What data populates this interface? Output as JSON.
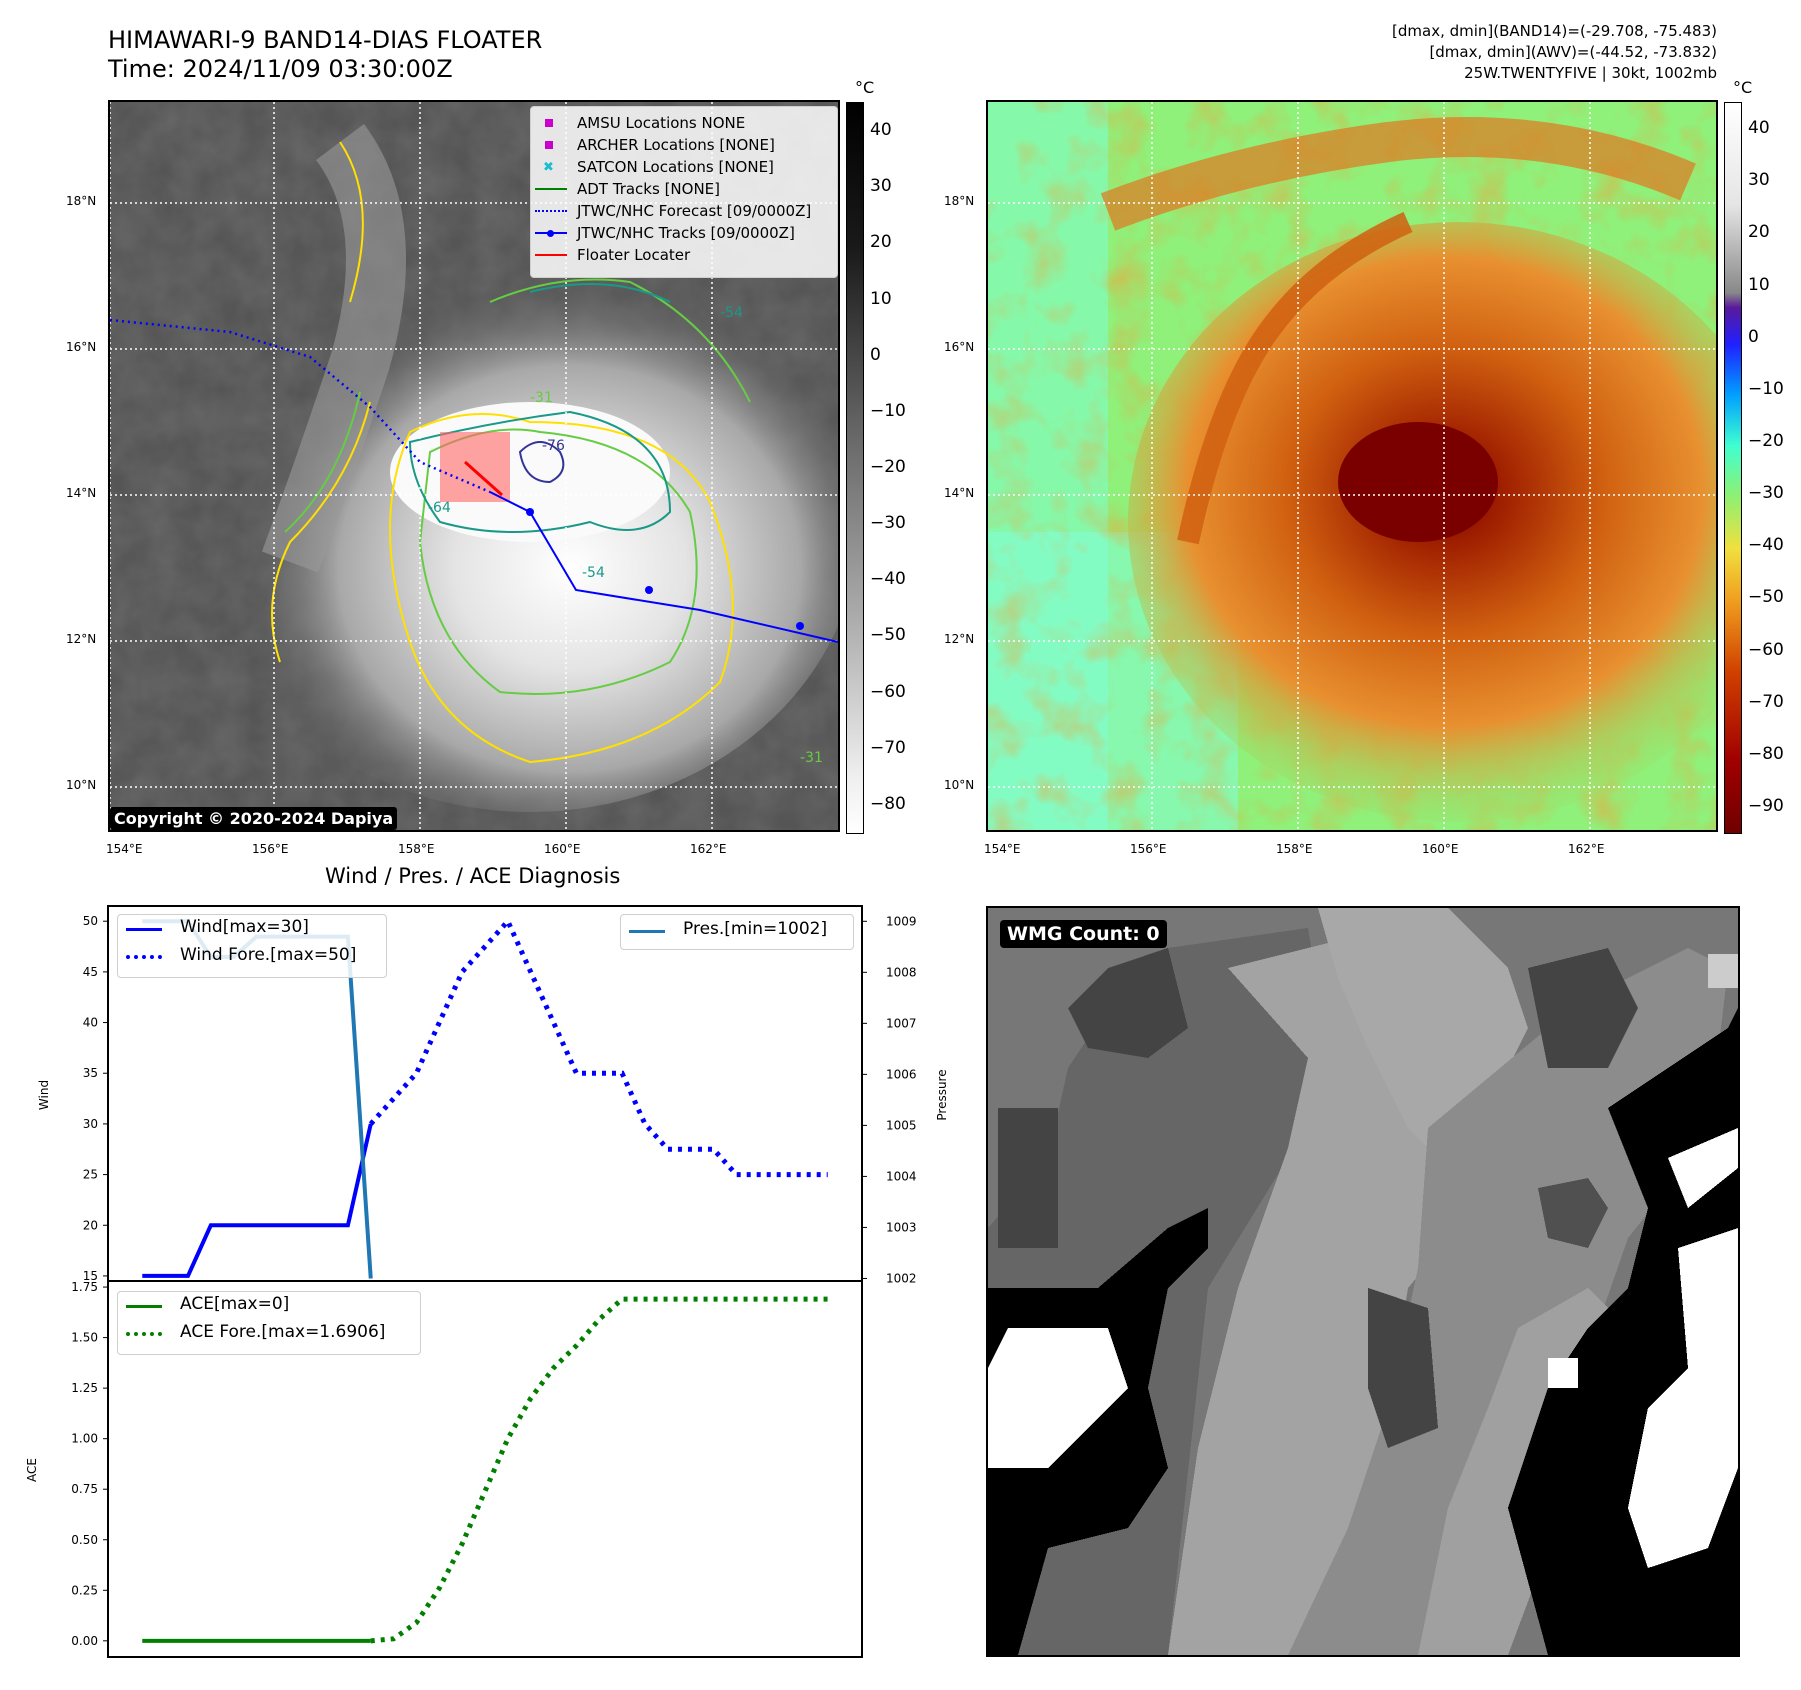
{
  "header": {
    "title_line1": "HIMAWARI-9 BAND14-DIAS FLOATER",
    "title_line2": "Time: 2024/11/09 03:30:00Z",
    "meta_line1": "[dmax, dmin](BAND14)=(-29.708, -75.483)",
    "meta_line2": "[dmax, dmin](AWV)=(-44.52, -73.832)",
    "meta_line3": "25W.TWENTYFIVE | 30kt, 1002mb"
  },
  "map_axes": {
    "lat_ticks": [
      "18°N",
      "16°N",
      "14°N",
      "12°N",
      "10°N"
    ],
    "lon_ticks": [
      "154°E",
      "156°E",
      "158°E",
      "160°E",
      "162°E"
    ]
  },
  "ir_panel": {
    "copyright": "Copyright © 2020-2024 Dapiya",
    "colorbar_unit": "°C",
    "colorbar_ticks": [
      "40",
      "30",
      "20",
      "10",
      "0",
      "−10",
      "−20",
      "−30",
      "−40",
      "−50",
      "−60",
      "−70",
      "−80"
    ],
    "contour_labels": [
      "-54",
      "-54",
      "-76",
      "-64",
      "-31",
      "-31"
    ],
    "legend": [
      {
        "label": "AMSU Locations NONE",
        "color": "#cc00cc",
        "marker": "square"
      },
      {
        "label": "ARCHER Locations [NONE]",
        "color": "#cc00cc",
        "marker": "square"
      },
      {
        "label": "SATCON Locations [NONE]",
        "color": "#17becf",
        "marker": "x"
      },
      {
        "label": "ADT Tracks [NONE]",
        "color": "#008000",
        "marker": "line"
      },
      {
        "label": "JTWC/NHC Forecast [09/0000Z]",
        "color": "#0000ff",
        "marker": "dotted"
      },
      {
        "label": "JTWC/NHC Tracks [09/0000Z]",
        "color": "#0000ff",
        "marker": "line-dot"
      },
      {
        "label": "Floater Locater",
        "color": "#ff0000",
        "marker": "line"
      }
    ]
  },
  "awv_panel": {
    "colorbar_unit": "°C",
    "colorbar_ticks": [
      "40",
      "30",
      "20",
      "10",
      "0",
      "−10",
      "−20",
      "−30",
      "−40",
      "−50",
      "−60",
      "−70",
      "−80",
      "−90"
    ]
  },
  "wmg_panel": {
    "label": "WMG Count: 0"
  },
  "chart_data": [
    {
      "type": "line",
      "title": "Wind / Pres. / ACE Diagnosis",
      "ylabel": "Wind",
      "y2label": "Pressure",
      "ylim": [
        14.5,
        51.5
      ],
      "y2lim": [
        1001.95,
        1009.3
      ],
      "yticks": [
        "50",
        "45",
        "40",
        "35",
        "30",
        "25",
        "20",
        "15"
      ],
      "y2ticks": [
        "1009",
        "1008",
        "1007",
        "1006",
        "1005",
        "1004",
        "1003",
        "1002"
      ],
      "xlim": [
        -1.5,
        31.5
      ],
      "series": [
        {
          "name": "Wind[max=30]",
          "axis": "left",
          "color": "#0000ff",
          "style": "solid",
          "x": [
            0,
            2,
            3,
            4,
            5,
            6,
            7,
            8,
            9,
            10
          ],
          "values": [
            15,
            15,
            20,
            20,
            20,
            20,
            20,
            20,
            20,
            30
          ]
        },
        {
          "name": "Wind Fore.[max=50]",
          "axis": "left",
          "color": "#0000ff",
          "style": "dotted",
          "x": [
            10,
            11,
            12,
            13,
            14,
            15,
            16,
            17,
            18,
            19,
            20,
            21,
            22,
            23,
            24,
            25,
            26,
            27,
            28,
            29,
            30
          ],
          "values": [
            30,
            32.5,
            35,
            40,
            45,
            47.5,
            50,
            45,
            40,
            35,
            35,
            35,
            30,
            27.5,
            27.5,
            27.5,
            25,
            25,
            25,
            25,
            25
          ]
        },
        {
          "name": "Pres.[min=1002]",
          "axis": "right",
          "color": "#1f77b4",
          "style": "solid",
          "x": [
            0,
            2,
            3,
            4,
            5,
            6,
            7,
            8,
            9,
            10
          ],
          "values": [
            1009,
            1009,
            1008.3,
            1008.3,
            1008.7,
            1008.7,
            1008.7,
            1008.7,
            1008.7,
            1002
          ]
        }
      ]
    },
    {
      "type": "line",
      "ylabel": "ACE",
      "ylim": [
        -0.08,
        1.78
      ],
      "yticks": [
        "1.75",
        "1.50",
        "1.25",
        "1.00",
        "0.75",
        "0.50",
        "0.25",
        "0.00"
      ],
      "xlim": [
        -1.5,
        31.5
      ],
      "series": [
        {
          "name": "ACE[max=0]",
          "axis": "left",
          "color": "#008000",
          "style": "solid",
          "x": [
            0,
            10
          ],
          "values": [
            0,
            0
          ]
        },
        {
          "name": "ACE Fore.[max=1.6906]",
          "axis": "left",
          "color": "#008000",
          "style": "dotted",
          "x": [
            10,
            11,
            12,
            13,
            14,
            15,
            16,
            17,
            18,
            19,
            20,
            21,
            22,
            30
          ],
          "values": [
            0,
            0.01,
            0.09,
            0.26,
            0.48,
            0.74,
            1.0,
            1.2,
            1.35,
            1.46,
            1.59,
            1.6906,
            1.6906,
            1.6906
          ]
        }
      ]
    }
  ]
}
